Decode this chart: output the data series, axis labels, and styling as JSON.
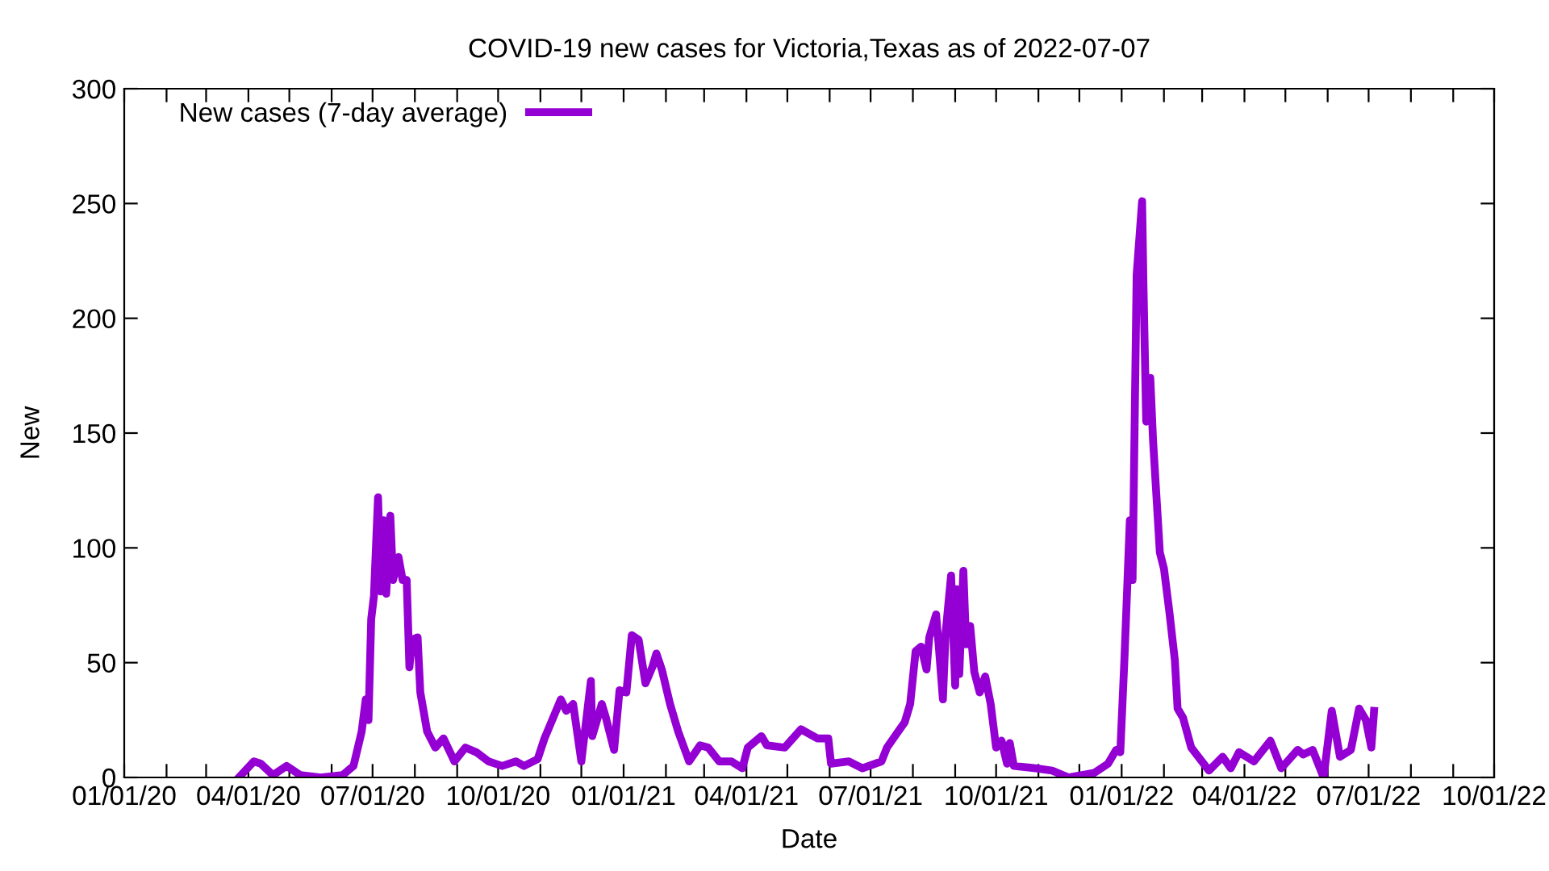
{
  "chart_data": {
    "type": "line",
    "title": "COVID-19 new cases for Victoria,Texas as of 2022-07-07",
    "xlabel": "Date",
    "ylabel": "New",
    "xlim": [
      "2020-01-01",
      "2022-10-01"
    ],
    "ylim": [
      0,
      300
    ],
    "yticks": [
      0,
      50,
      100,
      150,
      200,
      250,
      300
    ],
    "xticks": [
      {
        "value": "2020-01-01",
        "label": "01/01/20"
      },
      {
        "value": "2020-02-01",
        "label": null
      },
      {
        "value": "2020-03-01",
        "label": null
      },
      {
        "value": "2020-04-01",
        "label": "04/01/20"
      },
      {
        "value": "2020-05-01",
        "label": null
      },
      {
        "value": "2020-06-01",
        "label": null
      },
      {
        "value": "2020-07-01",
        "label": "07/01/20"
      },
      {
        "value": "2020-08-01",
        "label": null
      },
      {
        "value": "2020-09-01",
        "label": null
      },
      {
        "value": "2020-10-01",
        "label": "10/01/20"
      },
      {
        "value": "2020-11-01",
        "label": null
      },
      {
        "value": "2020-12-01",
        "label": null
      },
      {
        "value": "2021-01-01",
        "label": "01/01/21"
      },
      {
        "value": "2021-02-01",
        "label": null
      },
      {
        "value": "2021-03-01",
        "label": null
      },
      {
        "value": "2021-04-01",
        "label": "04/01/21"
      },
      {
        "value": "2021-05-01",
        "label": null
      },
      {
        "value": "2021-06-01",
        "label": null
      },
      {
        "value": "2021-07-01",
        "label": "07/01/21"
      },
      {
        "value": "2021-08-01",
        "label": null
      },
      {
        "value": "2021-09-01",
        "label": null
      },
      {
        "value": "2021-10-01",
        "label": "10/01/21"
      },
      {
        "value": "2021-11-01",
        "label": null
      },
      {
        "value": "2021-12-01",
        "label": null
      },
      {
        "value": "2022-01-01",
        "label": "01/01/22"
      },
      {
        "value": "2022-02-01",
        "label": null
      },
      {
        "value": "2022-03-01",
        "label": null
      },
      {
        "value": "2022-04-01",
        "label": "04/01/22"
      },
      {
        "value": "2022-05-01",
        "label": null
      },
      {
        "value": "2022-06-01",
        "label": null
      },
      {
        "value": "2022-07-01",
        "label": "07/01/22"
      },
      {
        "value": "2022-08-01",
        "label": null
      },
      {
        "value": "2022-09-01",
        "label": null
      },
      {
        "value": "2022-10-01",
        "label": "10/01/22"
      }
    ],
    "grid": false,
    "legend": "top left",
    "marker": "none",
    "line_style": "solid",
    "series": [
      {
        "name": "New cases (7-day average)",
        "color": "#9400d3",
        "x": [
          "2020-03-25",
          "2020-04-05",
          "2020-04-10",
          "2020-04-19",
          "2020-04-29",
          "2020-05-09",
          "2020-05-24",
          "2020-06-09",
          "2020-06-17",
          "2020-06-23",
          "2020-06-26",
          "2020-06-28",
          "2020-06-30",
          "2020-07-02",
          "2020-07-05",
          "2020-07-07",
          "2020-07-09",
          "2020-07-11",
          "2020-07-14",
          "2020-07-16",
          "2020-07-20",
          "2020-07-23",
          "2020-07-26",
          "2020-07-28",
          "2020-07-30",
          "2020-08-03",
          "2020-08-05",
          "2020-08-10",
          "2020-08-16",
          "2020-08-22",
          "2020-08-30",
          "2020-09-07",
          "2020-09-15",
          "2020-09-24",
          "2020-10-04",
          "2020-10-14",
          "2020-10-20",
          "2020-10-30",
          "2020-11-04",
          "2020-11-16",
          "2020-11-20",
          "2020-11-25",
          "2020-12-01",
          "2020-12-08",
          "2020-12-09",
          "2020-12-16",
          "2020-12-19",
          "2020-12-25",
          "2020-12-29",
          "2021-01-03",
          "2021-01-07",
          "2021-01-12",
          "2021-01-17",
          "2021-01-22",
          "2021-01-25",
          "2021-01-29",
          "2021-02-04",
          "2021-02-10",
          "2021-02-18",
          "2021-02-26",
          "2021-03-04",
          "2021-03-12",
          "2021-03-21",
          "2021-03-29",
          "2021-04-02",
          "2021-04-12",
          "2021-04-16",
          "2021-04-29",
          "2021-05-11",
          "2021-05-17",
          "2021-05-23",
          "2021-05-31",
          "2021-06-02",
          "2021-06-15",
          "2021-06-25",
          "2021-07-09",
          "2021-07-13",
          "2021-07-20",
          "2021-07-26",
          "2021-07-30",
          "2021-08-03",
          "2021-08-07",
          "2021-08-11",
          "2021-08-13",
          "2021-08-18",
          "2021-08-20",
          "2021-08-23",
          "2021-08-25",
          "2021-08-29",
          "2021-09-01",
          "2021-09-02",
          "2021-09-04",
          "2021-09-07",
          "2021-09-09",
          "2021-09-12",
          "2021-09-15",
          "2021-09-19",
          "2021-09-23",
          "2021-09-27",
          "2021-10-01",
          "2021-10-05",
          "2021-10-09",
          "2021-10-11",
          "2021-10-14",
          "2021-10-30",
          "2021-11-11",
          "2021-11-23",
          "2021-12-12",
          "2021-12-22",
          "2021-12-28",
          "2021-12-31",
          "2022-01-03",
          "2022-01-07",
          "2022-01-09",
          "2022-01-12",
          "2022-01-16",
          "2022-01-17",
          "2022-01-19",
          "2022-01-22",
          "2022-01-24",
          "2022-01-29",
          "2022-02-01",
          "2022-02-05",
          "2022-02-09",
          "2022-02-11",
          "2022-02-15",
          "2022-02-21",
          "2022-03-06",
          "2022-03-16",
          "2022-03-22",
          "2022-03-28",
          "2022-04-08",
          "2022-04-20",
          "2022-04-28",
          "2022-05-10",
          "2022-05-14",
          "2022-05-21",
          "2022-05-29",
          "2022-06-04",
          "2022-06-10",
          "2022-06-18",
          "2022-06-24",
          "2022-06-29",
          "2022-07-03",
          "2022-07-05"
        ],
        "values": [
          0,
          7,
          6,
          1,
          5,
          1,
          0,
          1,
          5,
          20,
          34,
          25,
          69,
          79,
          122,
          81,
          112,
          80,
          114,
          86,
          96,
          86,
          86,
          48,
          60,
          61,
          37,
          20,
          13,
          17,
          7,
          13,
          11,
          7,
          5,
          7,
          5,
          8,
          17,
          34,
          29,
          32,
          7,
          42,
          18,
          32,
          26,
          12,
          38,
          37,
          62,
          60,
          41,
          48,
          54,
          47,
          32,
          20,
          7,
          14,
          13,
          7,
          7,
          4,
          13,
          18,
          14,
          13,
          21,
          19,
          17,
          17,
          6,
          7,
          4,
          7,
          13,
          19,
          24,
          32,
          55,
          57,
          47,
          61,
          71,
          57,
          34,
          63,
          88,
          40,
          82,
          45,
          90,
          58,
          66,
          46,
          37,
          44,
          32,
          13,
          16,
          6,
          15,
          5,
          4,
          3,
          0,
          2,
          6,
          12,
          11,
          51,
          112,
          86,
          219,
          251,
          214,
          155,
          174,
          147,
          98,
          91,
          72,
          51,
          30,
          26,
          13,
          3,
          9,
          4,
          11,
          7,
          16,
          4,
          12,
          10,
          12,
          0,
          29,
          9,
          12,
          30,
          25,
          13,
          29
        ]
      }
    ]
  }
}
